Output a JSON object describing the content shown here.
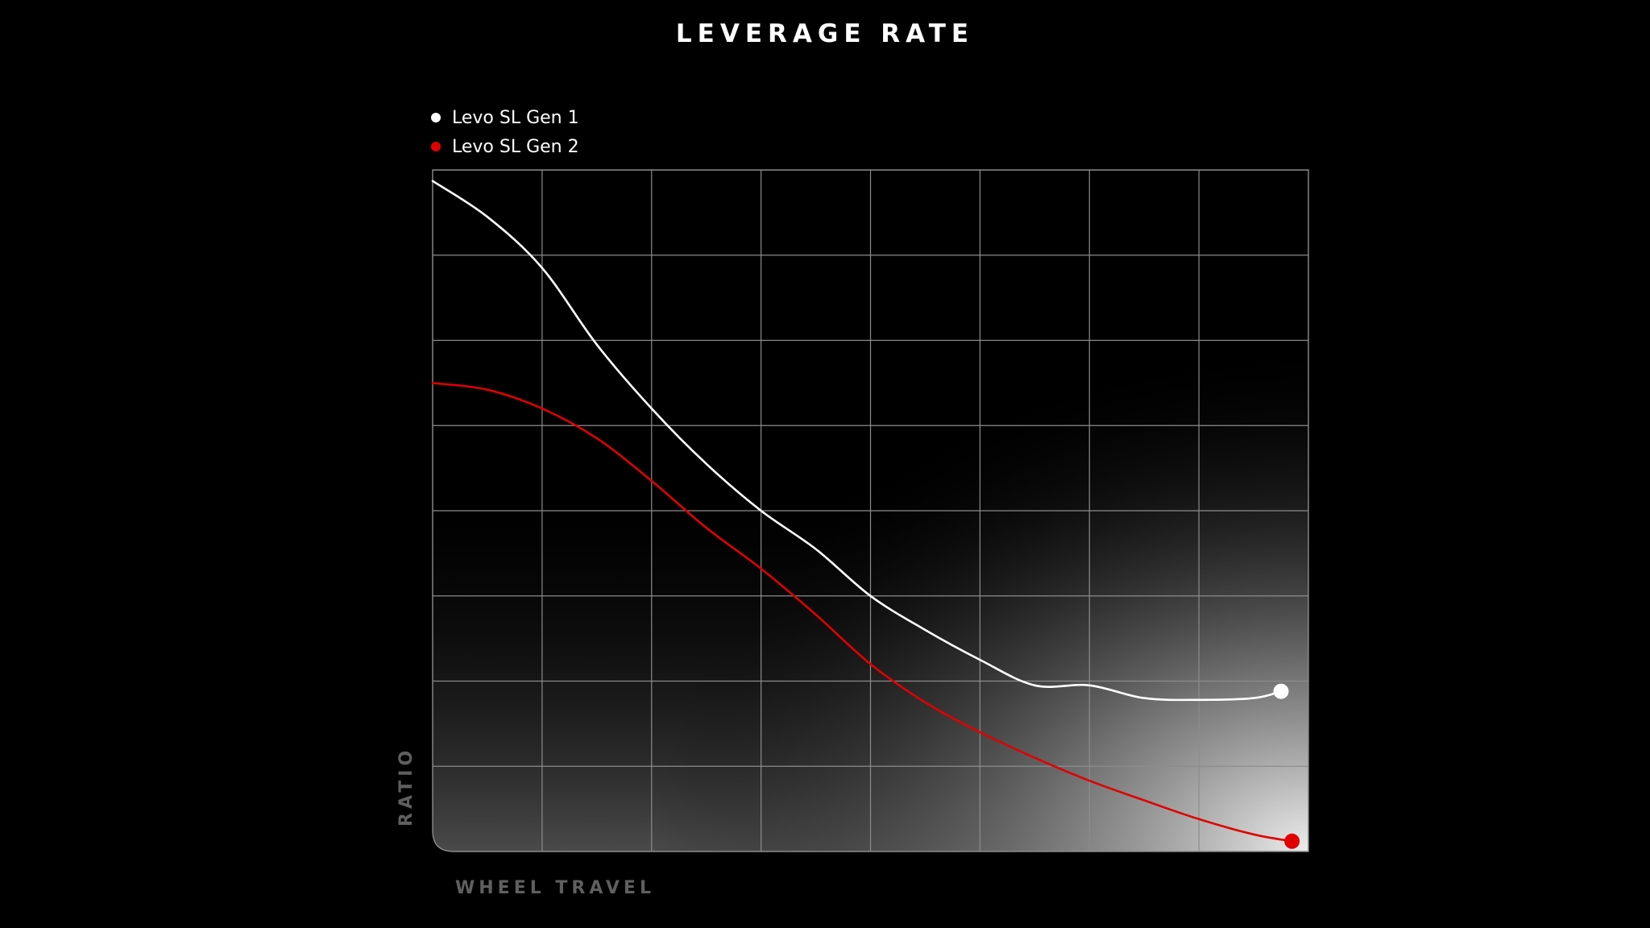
{
  "chart_data": {
    "type": "line",
    "title": "LEVERAGE RATE",
    "xlabel": "WHEEL TRAVEL",
    "ylabel": "RATIO",
    "xlim": [
      0,
      8
    ],
    "ylim": [
      0,
      8
    ],
    "grid": true,
    "legend_position": "top-left",
    "series": [
      {
        "name": "Levo SL Gen 1",
        "color": "#ffffff",
        "x": [
          0,
          0.5,
          1,
          1.5,
          2,
          2.5,
          3,
          3.5,
          4,
          4.5,
          5,
          5.5,
          6,
          6.5,
          7,
          7.5,
          7.75
        ],
        "values": [
          7.87,
          7.45,
          6.85,
          5.95,
          5.2,
          4.55,
          4.0,
          3.55,
          3.0,
          2.6,
          2.25,
          1.95,
          1.95,
          1.8,
          1.78,
          1.8,
          1.88
        ]
      },
      {
        "name": "Levo SL Gen 2",
        "color": "#e00000",
        "x": [
          0,
          0.5,
          1,
          1.5,
          2,
          2.5,
          3,
          3.5,
          4,
          4.5,
          5,
          5.5,
          6,
          6.5,
          7,
          7.5,
          7.85
        ],
        "values": [
          5.5,
          5.42,
          5.2,
          4.85,
          4.35,
          3.8,
          3.32,
          2.78,
          2.2,
          1.75,
          1.4,
          1.1,
          0.83,
          0.6,
          0.38,
          0.2,
          0.12
        ]
      }
    ]
  }
}
